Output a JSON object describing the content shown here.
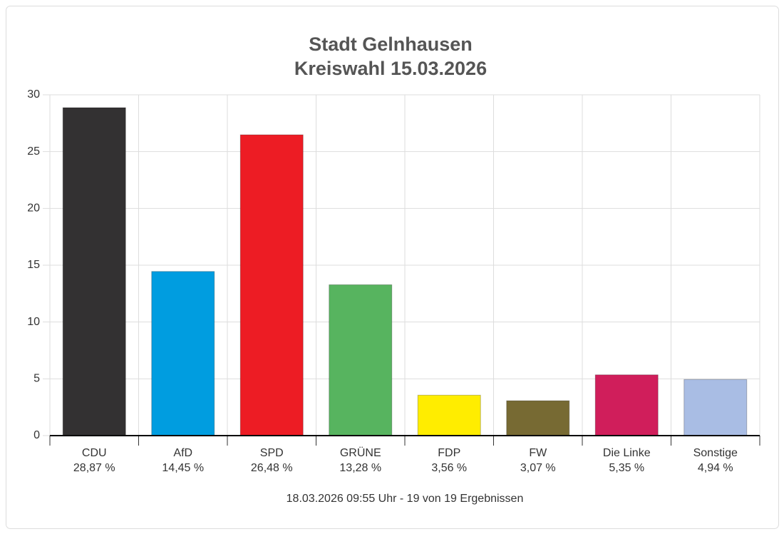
{
  "chart_data": {
    "type": "bar",
    "title": "Stadt Gelnhausen",
    "subtitle": "Kreiswahl 15.03.2026",
    "categories": [
      "CDU",
      "AfD",
      "SPD",
      "GRÜNE",
      "FDP",
      "FW",
      "Die Linke",
      "Sonstige"
    ],
    "values": [
      28.87,
      14.45,
      26.48,
      13.28,
      3.56,
      3.07,
      5.35,
      4.94
    ],
    "value_labels": [
      "28,87 %",
      "14,45 %",
      "26,48 %",
      "13,28 %",
      "3,56 %",
      "3,07 %",
      "5,35 %",
      "4,94 %"
    ],
    "colors": [
      "#333132",
      "#009de0",
      "#ed1c24",
      "#57b45f",
      "#ffed00",
      "#776a33",
      "#d01e5b",
      "#a9bde4"
    ],
    "ylim": [
      0,
      30
    ],
    "yticks": [
      0,
      5,
      10,
      15,
      20,
      25,
      30
    ],
    "grid": true,
    "note": "18.03.2026 09:55 Uhr - 19 von 19 Ergebnissen"
  }
}
